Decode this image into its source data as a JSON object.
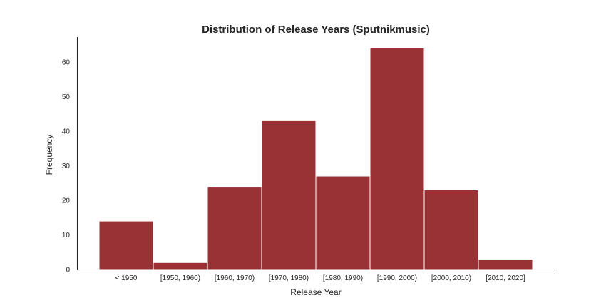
{
  "chart_data": {
    "type": "bar",
    "title": "Distribution of Release Years (Sputnikmusic)",
    "xlabel": "Release Year",
    "ylabel": "Frequency",
    "categories": [
      "< 1950",
      "[1950, 1960)",
      "[1960, 1970)",
      "[1970, 1980)",
      "[1980, 1990)",
      "[1990, 2000)",
      "[2000, 2010)",
      "[2010, 2020]"
    ],
    "values": [
      14,
      2,
      24,
      43,
      27,
      64,
      23,
      3
    ],
    "yticks": [
      0,
      10,
      20,
      30,
      40,
      50,
      60
    ],
    "ylim": [
      0,
      67.2
    ],
    "grid": false,
    "bar_color": "#983234"
  }
}
